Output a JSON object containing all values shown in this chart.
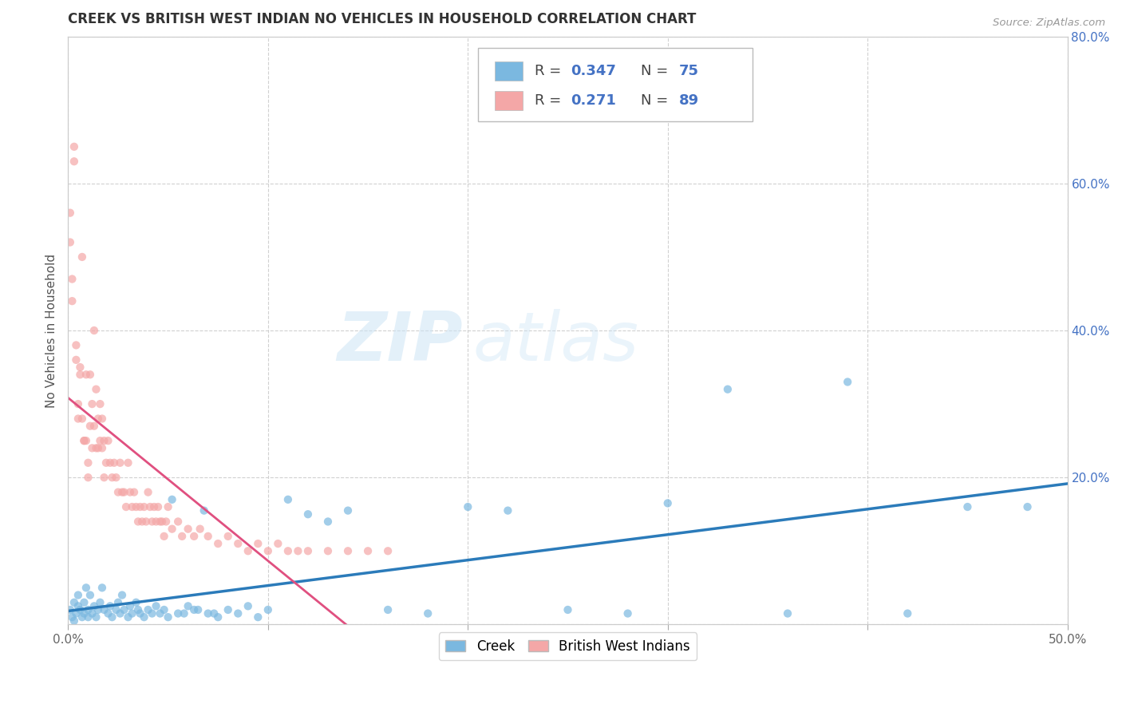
{
  "title": "CREEK VS BRITISH WEST INDIAN NO VEHICLES IN HOUSEHOLD CORRELATION CHART",
  "source": "Source: ZipAtlas.com",
  "ylabel": "No Vehicles in Household",
  "x_min": 0.0,
  "x_max": 0.5,
  "y_min": 0.0,
  "y_max": 0.8,
  "x_tick_positions": [
    0.0,
    0.1,
    0.2,
    0.3,
    0.4,
    0.5
  ],
  "x_tick_labels_ends": [
    "0.0%",
    "",
    "",
    "",
    "",
    "50.0%"
  ],
  "y_ticks": [
    0.0,
    0.2,
    0.4,
    0.6,
    0.8
  ],
  "y_tick_labels": [
    "",
    "20.0%",
    "40.0%",
    "60.0%",
    "80.0%"
  ],
  "creek_color": "#7bb8e0",
  "british_color": "#f4a7a7",
  "creek_line_color": "#2b7bba",
  "british_line_color": "#e05080",
  "creek_R": 0.347,
  "creek_N": 75,
  "british_R": 0.271,
  "british_N": 89,
  "legend_creek_label": "Creek",
  "legend_british_label": "British West Indians",
  "watermark_zip": "ZIP",
  "watermark_atlas": "atlas",
  "background_color": "#ffffff",
  "grid_color": "#cccccc",
  "creek_scatter_x": [
    0.001,
    0.002,
    0.003,
    0.003,
    0.004,
    0.005,
    0.005,
    0.006,
    0.007,
    0.008,
    0.008,
    0.009,
    0.01,
    0.01,
    0.011,
    0.012,
    0.013,
    0.014,
    0.015,
    0.016,
    0.017,
    0.018,
    0.02,
    0.021,
    0.022,
    0.024,
    0.025,
    0.026,
    0.027,
    0.028,
    0.03,
    0.031,
    0.032,
    0.034,
    0.035,
    0.036,
    0.038,
    0.04,
    0.042,
    0.044,
    0.046,
    0.048,
    0.05,
    0.055,
    0.06,
    0.065,
    0.07,
    0.075,
    0.08,
    0.085,
    0.09,
    0.095,
    0.1,
    0.11,
    0.12,
    0.13,
    0.14,
    0.16,
    0.18,
    0.2,
    0.22,
    0.25,
    0.28,
    0.3,
    0.33,
    0.36,
    0.39,
    0.42,
    0.45,
    0.48,
    0.052,
    0.058,
    0.063,
    0.068,
    0.073
  ],
  "creek_scatter_y": [
    0.02,
    0.01,
    0.03,
    0.005,
    0.015,
    0.025,
    0.04,
    0.02,
    0.01,
    0.015,
    0.03,
    0.05,
    0.02,
    0.01,
    0.04,
    0.015,
    0.025,
    0.01,
    0.02,
    0.03,
    0.05,
    0.02,
    0.015,
    0.025,
    0.01,
    0.02,
    0.03,
    0.015,
    0.04,
    0.02,
    0.01,
    0.025,
    0.015,
    0.03,
    0.02,
    0.015,
    0.01,
    0.02,
    0.015,
    0.025,
    0.015,
    0.02,
    0.01,
    0.015,
    0.025,
    0.02,
    0.015,
    0.01,
    0.02,
    0.015,
    0.025,
    0.01,
    0.02,
    0.17,
    0.15,
    0.14,
    0.155,
    0.02,
    0.015,
    0.16,
    0.155,
    0.02,
    0.015,
    0.165,
    0.32,
    0.015,
    0.33,
    0.015,
    0.16,
    0.16,
    0.17,
    0.015,
    0.02,
    0.155,
    0.015
  ],
  "british_scatter_x": [
    0.001,
    0.001,
    0.002,
    0.002,
    0.003,
    0.003,
    0.004,
    0.004,
    0.005,
    0.005,
    0.006,
    0.006,
    0.007,
    0.007,
    0.008,
    0.008,
    0.009,
    0.009,
    0.01,
    0.01,
    0.011,
    0.011,
    0.012,
    0.012,
    0.013,
    0.013,
    0.014,
    0.014,
    0.015,
    0.015,
    0.016,
    0.016,
    0.017,
    0.017,
    0.018,
    0.018,
    0.019,
    0.02,
    0.021,
    0.022,
    0.023,
    0.024,
    0.025,
    0.026,
    0.027,
    0.028,
    0.029,
    0.03,
    0.031,
    0.032,
    0.033,
    0.034,
    0.035,
    0.036,
    0.037,
    0.038,
    0.039,
    0.04,
    0.041,
    0.042,
    0.043,
    0.044,
    0.045,
    0.046,
    0.047,
    0.048,
    0.049,
    0.05,
    0.052,
    0.055,
    0.057,
    0.06,
    0.063,
    0.066,
    0.07,
    0.075,
    0.08,
    0.085,
    0.09,
    0.095,
    0.1,
    0.105,
    0.11,
    0.115,
    0.12,
    0.13,
    0.14,
    0.15,
    0.16
  ],
  "british_scatter_y": [
    0.52,
    0.56,
    0.44,
    0.47,
    0.63,
    0.65,
    0.38,
    0.36,
    0.3,
    0.28,
    0.35,
    0.34,
    0.28,
    0.5,
    0.25,
    0.25,
    0.34,
    0.25,
    0.22,
    0.2,
    0.34,
    0.27,
    0.3,
    0.24,
    0.4,
    0.27,
    0.32,
    0.24,
    0.28,
    0.24,
    0.3,
    0.25,
    0.28,
    0.24,
    0.25,
    0.2,
    0.22,
    0.25,
    0.22,
    0.2,
    0.22,
    0.2,
    0.18,
    0.22,
    0.18,
    0.18,
    0.16,
    0.22,
    0.18,
    0.16,
    0.18,
    0.16,
    0.14,
    0.16,
    0.14,
    0.16,
    0.14,
    0.18,
    0.16,
    0.14,
    0.16,
    0.14,
    0.16,
    0.14,
    0.14,
    0.12,
    0.14,
    0.16,
    0.13,
    0.14,
    0.12,
    0.13,
    0.12,
    0.13,
    0.12,
    0.11,
    0.12,
    0.11,
    0.1,
    0.11,
    0.1,
    0.11,
    0.1,
    0.1,
    0.1,
    0.1,
    0.1,
    0.1,
    0.1
  ]
}
